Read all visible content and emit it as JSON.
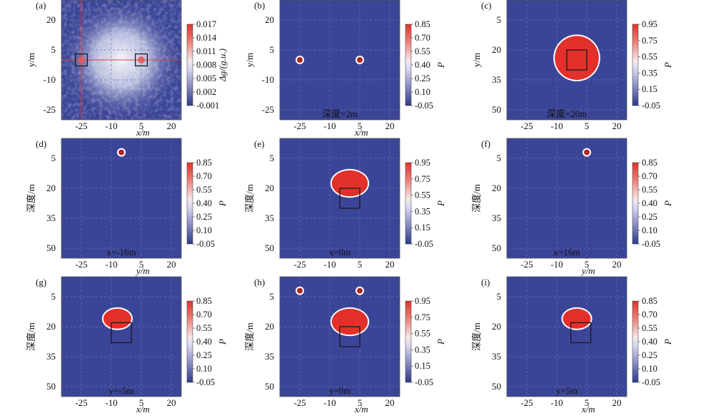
{
  "colors": {
    "background_blue": "#3b4597",
    "scale_low": "#2e3a8c",
    "scale_mid": "#f4f0ff",
    "scale_high": "#e1332c",
    "anomaly_red": "#e2302b",
    "grid_line": "#6a73b0",
    "crosshair": "#e24040"
  },
  "chart_data": [
    {
      "panel": "(a)",
      "type": "heatmap",
      "xlabel": "x/m",
      "ylabel": "y/m",
      "xticks": [
        "-25",
        "-10",
        "5",
        "20"
      ],
      "yticks": [
        "20",
        "5",
        "-10",
        "-25"
      ],
      "xlim": [
        -35,
        25
      ],
      "ylim": [
        -30,
        30
      ],
      "colorbar": {
        "label": "Δg/(g.u.)",
        "ticks": [
          "0.017",
          "0.014",
          "0.011",
          "0.008",
          "0.005",
          "0.002",
          "-0.001"
        ]
      },
      "annotation": "",
      "blobs": [],
      "small_markers": [],
      "noise_field": true,
      "crosshair": {
        "x": -25,
        "y": 0
      },
      "boxes": [
        {
          "x0": -28,
          "y0": -3,
          "x1": -22,
          "y1": 3
        },
        {
          "x0": 2,
          "y0": -3,
          "x1": 8,
          "y1": 3
        }
      ]
    },
    {
      "panel": "(b)",
      "type": "heatmap",
      "xlabel": "x/m",
      "ylabel": "y/m",
      "xticks": [
        "-25",
        "-10",
        "5",
        "20"
      ],
      "yticks": [
        "20",
        "5",
        "-10",
        "-25"
      ],
      "xlim": [
        -35,
        25
      ],
      "ylim": [
        -30,
        30
      ],
      "colorbar": {
        "label": "P",
        "ticks": [
          "0.85",
          "0.70",
          "0.55",
          "0.40",
          "0.25",
          "0.10",
          "-0.05"
        ]
      },
      "annotation": "深度=2m",
      "blobs": [],
      "small_markers": [
        {
          "x": -25,
          "y": 0
        },
        {
          "x": 5,
          "y": 0
        }
      ],
      "boxes": []
    },
    {
      "panel": "(c)",
      "type": "heatmap",
      "xlabel": "",
      "ylabel": "y/m",
      "xticks": [
        "-25",
        "-10",
        "5",
        "20"
      ],
      "yticks": [
        "5",
        "20",
        "35",
        "50"
      ],
      "xlim": [
        -35,
        25
      ],
      "ylim": [
        -5,
        55
      ],
      "colorbar": {
        "label": "P",
        "ticks": [
          "0.95",
          "0.75",
          "0.55",
          "0.35",
          "0.15",
          "-0.05"
        ]
      },
      "annotation": "深度=20m",
      "blobs": [
        {
          "cx": 0,
          "cy": 24,
          "rx": 11,
          "ry": 11
        }
      ],
      "small_markers": [],
      "boxes": [
        {
          "x0": -5,
          "y0": 20,
          "x1": 5,
          "y1": 30
        }
      ]
    },
    {
      "panel": "(d)",
      "type": "heatmap",
      "xlabel": "y/m",
      "ylabel": "深度/m",
      "xticks": [
        "-25",
        "-10",
        "5",
        "20"
      ],
      "yticks": [
        "5",
        "20",
        "35",
        "50"
      ],
      "xlim": [
        -35,
        25
      ],
      "ylim": [
        -5,
        55
      ],
      "colorbar": {
        "label": "P",
        "ticks": [
          "0.85",
          "0.70",
          "0.55",
          "0.40",
          "0.25",
          "0.10",
          "-0.05"
        ]
      },
      "annotation": "x=-16m",
      "blobs": [],
      "small_markers": [
        {
          "x": -5,
          "y": 2
        }
      ],
      "boxes": []
    },
    {
      "panel": "(e)",
      "type": "heatmap",
      "xlabel": "",
      "ylabel": "深度/m",
      "xticks": [
        "-25",
        "-10",
        "5",
        "20"
      ],
      "yticks": [
        "5",
        "20",
        "35",
        "50"
      ],
      "xlim": [
        -35,
        25
      ],
      "ylim": [
        -5,
        55
      ],
      "colorbar": {
        "label": "P",
        "ticks": [
          "0.95",
          "0.75",
          "0.55",
          "0.35",
          "0.15",
          "-0.05"
        ]
      },
      "annotation": "x=0m",
      "blobs": [
        {
          "cx": 0,
          "cy": 17.5,
          "rx": 9,
          "ry": 6.5
        }
      ],
      "small_markers": [],
      "boxes": [
        {
          "x0": -5,
          "y0": 20,
          "x1": 5,
          "y1": 30
        }
      ]
    },
    {
      "panel": "(f)",
      "type": "heatmap",
      "xlabel": "y/m",
      "ylabel": "深度/m",
      "xticks": [
        "-25",
        "-10",
        "5",
        "20"
      ],
      "yticks": [
        "5",
        "20",
        "35",
        "50"
      ],
      "xlim": [
        -35,
        25
      ],
      "ylim": [
        -5,
        55
      ],
      "colorbar": {
        "label": "P",
        "ticks": [
          "0.85",
          "0.70",
          "0.55",
          "0.40",
          "0.25",
          "0.10",
          "-0.05"
        ]
      },
      "annotation": "x=16m",
      "blobs": [],
      "small_markers": [
        {
          "x": 5,
          "y": 2
        }
      ],
      "boxes": []
    },
    {
      "panel": "(g)",
      "type": "heatmap",
      "xlabel": "x/m",
      "ylabel": "深度/m",
      "xticks": [
        "-25",
        "-10",
        "5",
        "20"
      ],
      "yticks": [
        "5",
        "20",
        "35",
        "50"
      ],
      "xlim": [
        -35,
        25
      ],
      "ylim": [
        -5,
        55
      ],
      "colorbar": {
        "label": "P",
        "ticks": [
          "0.85",
          "0.70",
          "0.55",
          "0.40",
          "0.25",
          "0.10",
          "-0.05"
        ]
      },
      "annotation": "y=-5m",
      "blobs": [
        {
          "cx": -7,
          "cy": 16,
          "rx": 7,
          "ry": 5
        }
      ],
      "small_markers": [],
      "boxes": [
        {
          "x0": -10,
          "y0": 18,
          "x1": 0,
          "y1": 28
        }
      ]
    },
    {
      "panel": "(h)",
      "type": "heatmap",
      "xlabel": "x/m",
      "ylabel": "深度/m",
      "xticks": [
        "-25",
        "-10",
        "5",
        "20"
      ],
      "yticks": [
        "5",
        "20",
        "35",
        "50"
      ],
      "xlim": [
        -35,
        25
      ],
      "ylim": [
        -5,
        55
      ],
      "colorbar": {
        "label": "P",
        "ticks": [
          "0.95",
          "0.75",
          "0.55",
          "0.35",
          "0.15",
          "-0.05"
        ]
      },
      "annotation": "y=0m",
      "blobs": [
        {
          "cx": 0,
          "cy": 17.5,
          "rx": 9,
          "ry": 6.5
        }
      ],
      "small_markers": [
        {
          "x": -25,
          "y": 2
        },
        {
          "x": 5,
          "y": 2
        }
      ],
      "boxes": [
        {
          "x0": -5,
          "y0": 20,
          "x1": 5,
          "y1": 30
        }
      ]
    },
    {
      "panel": "(i)",
      "type": "heatmap",
      "xlabel": "x/m",
      "ylabel": "深度/m",
      "xticks": [
        "-25",
        "-10",
        "5",
        "20"
      ],
      "yticks": [
        "5",
        "20",
        "35",
        "50"
      ],
      "xlim": [
        -35,
        25
      ],
      "ylim": [
        -5,
        55
      ],
      "colorbar": {
        "label": "P",
        "ticks": [
          "0.85",
          "0.70",
          "0.55",
          "0.40",
          "0.25",
          "0.10",
          "-0.05"
        ]
      },
      "annotation": "y=5m",
      "blobs": [
        {
          "cx": 0,
          "cy": 16,
          "rx": 7,
          "ry": 5
        }
      ],
      "small_markers": [],
      "boxes": [
        {
          "x0": -3,
          "y0": 18,
          "x1": 7,
          "y1": 28
        }
      ]
    }
  ]
}
